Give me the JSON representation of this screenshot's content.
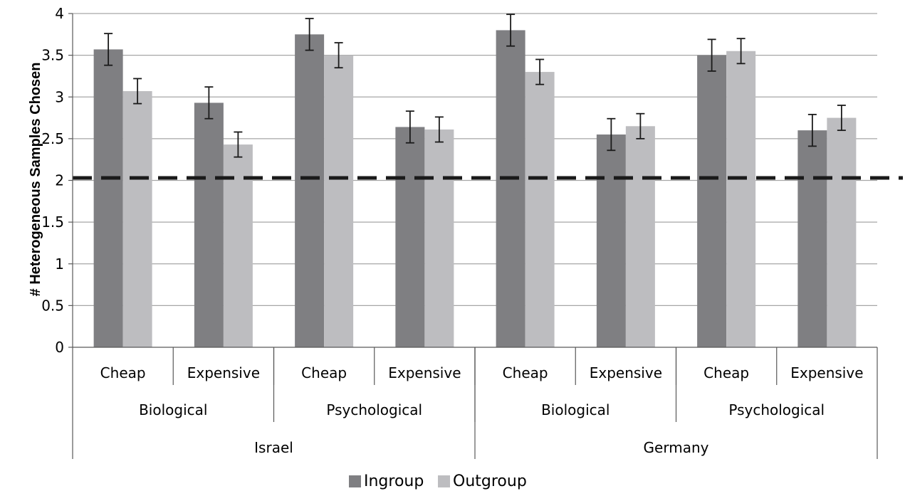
{
  "chart_data": {
    "type": "bar",
    "ylabel": "# Heterogeneous Samples Chosen",
    "xlabel": "",
    "ylim": [
      0,
      4
    ],
    "yticks": [
      0,
      0.5,
      1,
      1.5,
      2,
      2.5,
      3,
      3.5,
      4
    ],
    "ytick_labels": [
      "0",
      "0.5",
      "1",
      "1.5",
      "2",
      "2.5",
      "3",
      "3.5",
      "4"
    ],
    "grid": true,
    "reference_line": {
      "y": 2.03,
      "style": "dashed"
    },
    "categories": [
      "Israel / Biological / Cheap",
      "Israel / Biological / Expensive",
      "Israel / Psychological / Cheap",
      "Israel / Psychological / Expensive",
      "Germany / Biological / Cheap",
      "Germany / Biological / Expensive",
      "Germany / Psychological / Cheap",
      "Germany / Psychological / Expensive"
    ],
    "category_levels": [
      [
        "Cheap",
        "Expensive",
        "Cheap",
        "Expensive",
        "Cheap",
        "Expensive",
        "Cheap",
        "Expensive"
      ],
      [
        "Biological",
        "Psychological",
        "Biological",
        "Psychological"
      ],
      [
        "Israel",
        "Germany"
      ]
    ],
    "series": [
      {
        "name": "Ingroup",
        "color": "#7f7f82",
        "values": [
          3.57,
          2.93,
          3.75,
          2.64,
          3.8,
          2.55,
          3.5,
          2.6
        ],
        "error": [
          0.19,
          0.19,
          0.19,
          0.19,
          0.19,
          0.19,
          0.19,
          0.19
        ]
      },
      {
        "name": "Outgroup",
        "color": "#bdbdc0",
        "values": [
          3.07,
          2.43,
          3.5,
          2.61,
          3.3,
          2.65,
          3.55,
          2.75
        ],
        "error": [
          0.15,
          0.15,
          0.15,
          0.15,
          0.15,
          0.15,
          0.15,
          0.15
        ]
      }
    ],
    "legend": {
      "placement": "bottom-center",
      "entries": [
        "Ingroup",
        "Outgroup"
      ]
    }
  }
}
